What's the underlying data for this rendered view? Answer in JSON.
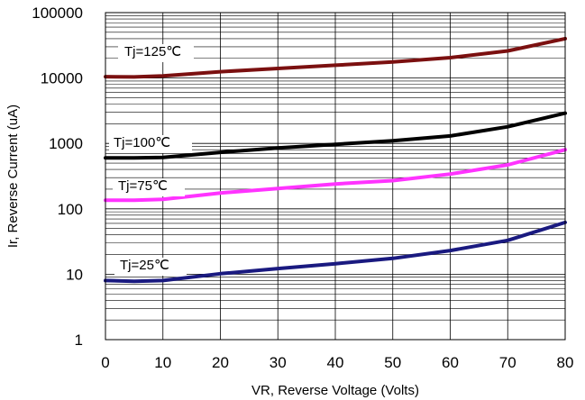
{
  "chart_data": {
    "type": "line",
    "xlabel": "VR, Reverse Voltage (Volts)",
    "ylabel": "Ir, Reverse Current (uA)",
    "xlim": [
      0,
      80
    ],
    "ylim": [
      1,
      100000
    ],
    "yscale": "log",
    "grid": true,
    "x_ticks": [
      "0",
      "10",
      "20",
      "30",
      "40",
      "50",
      "60",
      "70",
      "80"
    ],
    "y_ticks": [
      "1",
      "10",
      "100",
      "1000",
      "10000",
      "100000"
    ],
    "x": [
      0,
      5,
      10,
      20,
      30,
      40,
      50,
      60,
      70,
      80
    ],
    "series": [
      {
        "name": "Tj=125℃",
        "color": "#7b1010",
        "values": [
          10500,
          10400,
          10800,
          12500,
          14000,
          15700,
          17600,
          20500,
          26000,
          40000
        ]
      },
      {
        "name": "Tj=100℃",
        "color": "#000000",
        "values": [
          600,
          600,
          610,
          730,
          850,
          970,
          1100,
          1300,
          1800,
          2900
        ]
      },
      {
        "name": "Tj=75℃",
        "color": "#ff33ff",
        "values": [
          135,
          135,
          140,
          175,
          205,
          240,
          270,
          340,
          470,
          800
        ]
      },
      {
        "name": "Tj=25℃",
        "color": "#1a1a80",
        "values": [
          8,
          7.8,
          8,
          10.2,
          12.2,
          14.5,
          17.5,
          23,
          33,
          62
        ]
      }
    ],
    "legend_placement": "inline"
  }
}
